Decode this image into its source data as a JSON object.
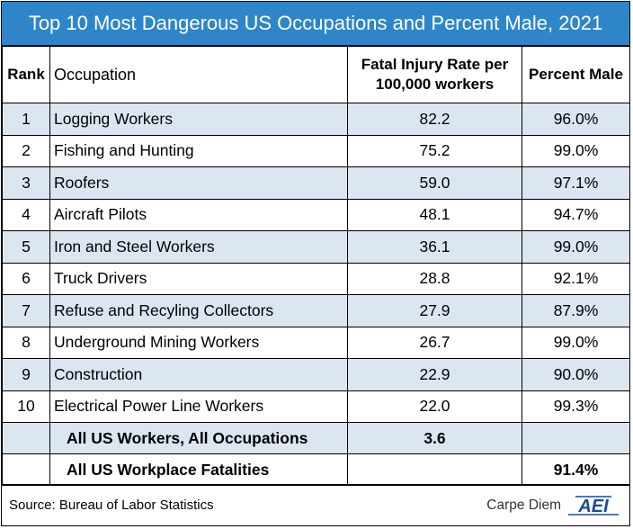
{
  "title": "Top 10 Most Dangerous US Occupations and Percent Male, 2021",
  "headers": {
    "rank": "Rank",
    "occupation": "Occupation",
    "rate_line1": "Fatal Injury Rate per",
    "rate_line2": "100,000 workers",
    "pct": "Percent Male"
  },
  "rows": [
    {
      "rank": "1",
      "occupation": "Logging Workers",
      "rate": "82.2",
      "pct": "96.0%"
    },
    {
      "rank": "2",
      "occupation": "Fishing and Hunting",
      "rate": "75.2",
      "pct": "99.0%"
    },
    {
      "rank": "3",
      "occupation": "Roofers",
      "rate": "59.0",
      "pct": "97.1%"
    },
    {
      "rank": "4",
      "occupation": "Aircraft Pilots",
      "rate": "48.1",
      "pct": "94.7%"
    },
    {
      "rank": "5",
      "occupation": "Iron and Steel Workers",
      "rate": "36.1",
      "pct": "99.0%"
    },
    {
      "rank": "6",
      "occupation": "Truck Drivers",
      "rate": "28.8",
      "pct": "92.1%"
    },
    {
      "rank": "7",
      "occupation": "Refuse and Recyling Collectors",
      "rate": "27.9",
      "pct": "87.9%"
    },
    {
      "rank": "8",
      "occupation": "Underground Mining Workers",
      "rate": "26.7",
      "pct": "99.0%"
    },
    {
      "rank": "9",
      "occupation": "Construction",
      "rate": "22.9",
      "pct": "90.0%"
    },
    {
      "rank": "10",
      "occupation": "Electrical Power Line Workers",
      "rate": "22.0",
      "pct": "99.3%"
    }
  ],
  "totals": [
    {
      "label": "All US Workers, All Occupations",
      "rate": "3.6",
      "pct": ""
    },
    {
      "label": "All US Workplace Fatalities",
      "rate": "",
      "pct": "91.4%"
    }
  ],
  "source": "Source: Bureau of Labor Statistics",
  "brand": "Carpe Diem",
  "logo_text": "AEI",
  "colors": {
    "title_bg": "#2e86c9",
    "shade": "#dce6f1",
    "logo": "#1a4a9c"
  },
  "chart_data": {
    "type": "table",
    "title": "Top 10 Most Dangerous US Occupations and Percent Male, 2021",
    "columns": [
      "Rank",
      "Occupation",
      "Fatal Injury Rate per 100,000 workers",
      "Percent Male"
    ],
    "rows": [
      [
        1,
        "Logging Workers",
        82.2,
        96.0
      ],
      [
        2,
        "Fishing and Hunting",
        75.2,
        99.0
      ],
      [
        3,
        "Roofers",
        59.0,
        97.1
      ],
      [
        4,
        "Aircraft Pilots",
        48.1,
        94.7
      ],
      [
        5,
        "Iron and Steel Workers",
        36.1,
        99.0
      ],
      [
        6,
        "Truck Drivers",
        28.8,
        92.1
      ],
      [
        7,
        "Refuse and Recyling Collectors",
        27.9,
        87.9
      ],
      [
        8,
        "Underground Mining Workers",
        26.7,
        99.0
      ],
      [
        9,
        "Construction",
        22.9,
        90.0
      ],
      [
        10,
        "Electrical Power Line Workers",
        22.0,
        99.3
      ]
    ],
    "totals": [
      [
        "All US Workers, All Occupations",
        3.6,
        null
      ],
      [
        "All US Workplace Fatalities",
        null,
        91.4
      ]
    ]
  }
}
